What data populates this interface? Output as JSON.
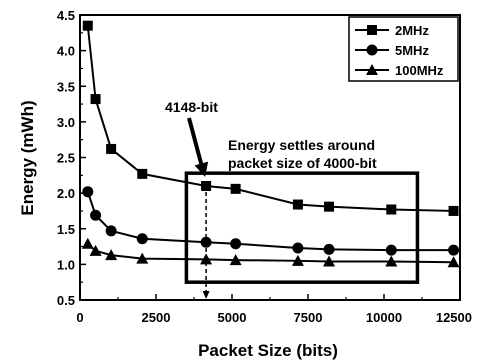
{
  "chart_data": {
    "type": "line",
    "title": "",
    "xlabel": "Packet Size (bits)",
    "ylabel": "Energy (mWh)",
    "xlim": [
      0,
      12500
    ],
    "ylim": [
      0.5,
      4.5
    ],
    "xticks": [
      "0",
      "2500",
      "5000",
      "7500",
      "10000",
      "12500"
    ],
    "yticks": [
      "0.5",
      "1.0",
      "1.5",
      "2.0",
      "2.5",
      "3.0",
      "3.5",
      "4.0",
      "4.5"
    ],
    "grid": false,
    "legend_position": "top-right",
    "x": [
      256,
      512,
      1024,
      2048,
      4148,
      5120,
      7168,
      8192,
      10240,
      12288
    ],
    "series": [
      {
        "name": "2MHz",
        "marker": "square",
        "values": [
          4.35,
          3.32,
          2.62,
          2.27,
          2.1,
          2.06,
          1.84,
          1.81,
          1.77,
          1.75
        ]
      },
      {
        "name": "5MHz",
        "marker": "circle",
        "values": [
          2.02,
          1.69,
          1.47,
          1.36,
          1.31,
          1.29,
          1.23,
          1.21,
          1.2,
          1.2
        ]
      },
      {
        "name": "100MHz",
        "marker": "triangle",
        "values": [
          1.29,
          1.19,
          1.13,
          1.08,
          1.07,
          1.06,
          1.05,
          1.04,
          1.04,
          1.03
        ]
      }
    ],
    "annotations": {
      "point_label": "4148-bit",
      "marked_x": 4148,
      "box_x_range": [
        3500,
        11100
      ],
      "box_y_range": [
        0.75,
        2.28
      ],
      "box_label_lines": [
        "Energy settles around",
        "packet size of 4000-bit"
      ]
    }
  }
}
